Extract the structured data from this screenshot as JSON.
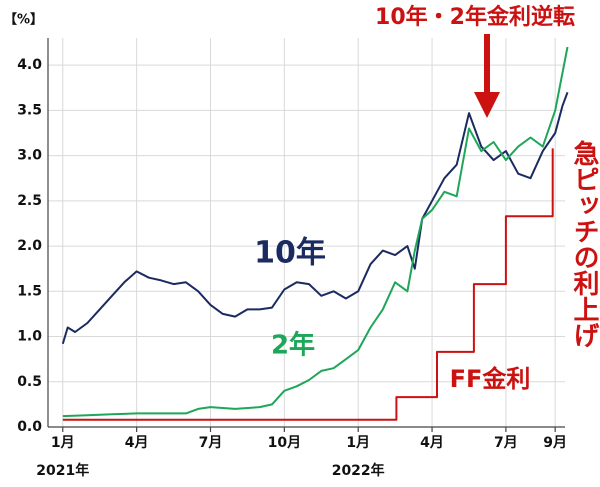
{
  "chart_data": {
    "type": "line",
    "unit_label": "【%】",
    "xlim": [
      -0.6,
      20.4
    ],
    "ylim": [
      0,
      4.3
    ],
    "xticks": [
      {
        "value": 0,
        "label": "1月"
      },
      {
        "value": 3,
        "label": "4月"
      },
      {
        "value": 6,
        "label": "7月"
      },
      {
        "value": 9,
        "label": "10月"
      },
      {
        "value": 12,
        "label": "1月"
      },
      {
        "value": 15,
        "label": "4月"
      },
      {
        "value": 18,
        "label": "7月"
      },
      {
        "value": 20,
        "label": "9月"
      }
    ],
    "year_labels": [
      {
        "value": 0,
        "label": "2021年"
      },
      {
        "value": 12,
        "label": "2022年"
      }
    ],
    "yticks": [
      {
        "value": 0,
        "label": "0.0"
      },
      {
        "value": 0.5,
        "label": "0.5"
      },
      {
        "value": 1,
        "label": "1.0"
      },
      {
        "value": 1.5,
        "label": "1.5"
      },
      {
        "value": 2,
        "label": "2.0"
      },
      {
        "value": 2.5,
        "label": "2.5"
      },
      {
        "value": 3,
        "label": "3.0"
      },
      {
        "value": 3.5,
        "label": "3.5"
      },
      {
        "value": 4,
        "label": "4.0"
      }
    ],
    "grid": true,
    "series": [
      {
        "name": "10年",
        "color": "#1b2a60",
        "x": [
          0,
          0.2,
          0.5,
          1,
          1.5,
          2,
          2.5,
          3,
          3.5,
          4,
          4.5,
          5,
          5.5,
          6,
          6.5,
          7,
          7.5,
          8,
          8.5,
          9,
          9.5,
          10,
          10.5,
          11,
          11.5,
          12,
          12.5,
          13,
          13.5,
          14,
          14.3,
          14.6,
          15,
          15.5,
          16,
          16.5,
          17,
          17.5,
          18,
          18.5,
          19,
          19.5,
          20,
          20.3,
          20.5
        ],
        "values": [
          0.92,
          1.1,
          1.05,
          1.15,
          1.3,
          1.45,
          1.6,
          1.72,
          1.65,
          1.62,
          1.58,
          1.6,
          1.5,
          1.35,
          1.25,
          1.22,
          1.3,
          1.3,
          1.32,
          1.52,
          1.6,
          1.58,
          1.45,
          1.5,
          1.42,
          1.5,
          1.8,
          1.95,
          1.9,
          2.0,
          1.75,
          2.3,
          2.5,
          2.75,
          2.9,
          3.47,
          3.1,
          2.95,
          3.05,
          2.8,
          2.75,
          3.05,
          3.25,
          3.55,
          3.7
        ]
      },
      {
        "name": "2年",
        "color": "#1ea659",
        "x": [
          0,
          1,
          2,
          3,
          4,
          5,
          5.5,
          6,
          7,
          8,
          8.5,
          9,
          9.5,
          10,
          10.5,
          11,
          11.5,
          12,
          12.5,
          13,
          13.5,
          14,
          14.3,
          14.6,
          15,
          15.5,
          16,
          16.5,
          17,
          17.5,
          18,
          18.5,
          19,
          19.5,
          20,
          20.5
        ],
        "values": [
          0.12,
          0.13,
          0.14,
          0.15,
          0.15,
          0.15,
          0.2,
          0.22,
          0.2,
          0.22,
          0.25,
          0.4,
          0.45,
          0.52,
          0.62,
          0.65,
          0.75,
          0.85,
          1.1,
          1.3,
          1.6,
          1.5,
          1.95,
          2.3,
          2.4,
          2.6,
          2.55,
          3.3,
          3.05,
          3.15,
          2.95,
          3.1,
          3.2,
          3.1,
          3.5,
          4.2
        ]
      },
      {
        "name": "FF金利",
        "color": "#cc1111",
        "x": [
          0,
          13.55,
          13.55,
          15.2,
          15.2,
          16.7,
          16.7,
          18.0,
          18.0,
          19.9,
          19.9
        ],
        "values": [
          0.08,
          0.08,
          0.33,
          0.33,
          0.83,
          0.83,
          1.58,
          1.58,
          2.33,
          2.33,
          3.08
        ]
      }
    ],
    "annotations": [
      "10年・2年金利逆転",
      "急ピッチの利上げ"
    ]
  }
}
